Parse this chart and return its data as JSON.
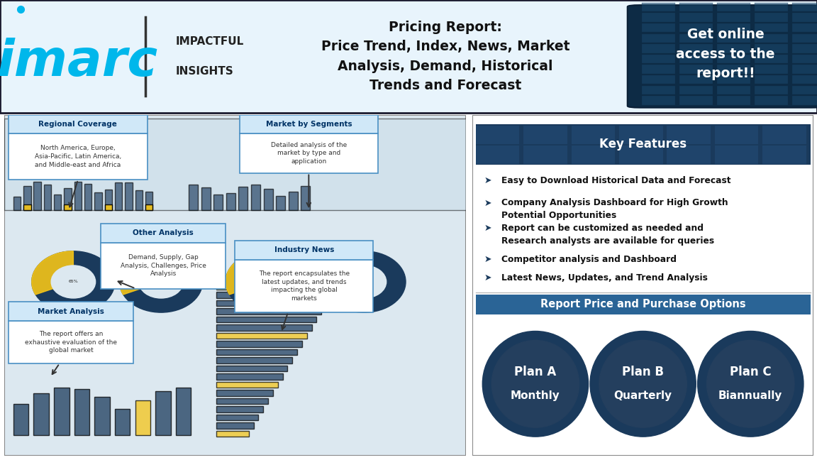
{
  "header_bg": "#e8f4fc",
  "header_border": "#1a1a2e",
  "header_title_line1": "Pricing Report:",
  "header_title_line2": "Price Trend, Index, News, Market",
  "header_title_line3": "Analysis, Demand, Historical",
  "header_title_line4": "Trends and Forecast",
  "imarc_color": "#00b7eb",
  "imarc_text": "imarc",
  "imarc_tagline1": "IMPACTFUL",
  "imarc_tagline2": "INSIGHTS",
  "cta_bg_dark": "#0d2b45",
  "cta_tile_color": "#1a4a6e",
  "cta_text": "Get online\naccess to the\nreport!!",
  "key_features_header_bg": "#1a3a5c",
  "key_features_header_text": "Key Features",
  "key_features": [
    "Easy to Download Historical Data and Forecast",
    "Company Analysis Dashboard for High Growth\nPotential Opportunities",
    "Report can be customized as needed and\nResearch analysts are available for queries",
    "Competitor analysis and Dashboard",
    "Latest News, Updates, and Trend Analysis"
  ],
  "purchase_header_bg": "#2a6496",
  "purchase_header_text": "Report Price and Purchase Options",
  "plans": [
    {
      "name": "Plan A",
      "sub": "Monthly"
    },
    {
      "name": "Plan B",
      "sub": "Quarterly"
    },
    {
      "name": "Plan C",
      "sub": "Biannually"
    }
  ],
  "plan_circle_color": "#1a3a5c",
  "plan_circle_inner": "#243f5e",
  "callout_header_bg": "#d0e8f8",
  "callout_header_color": "#003366",
  "callout_border": "#4a90c4",
  "bar_colors_dark": "#1a3a5c",
  "bar_colors_yellow": "#f5c518",
  "left_panel_bg": "#dce8f0",
  "dashboard_area_bg": "#c8dce8"
}
